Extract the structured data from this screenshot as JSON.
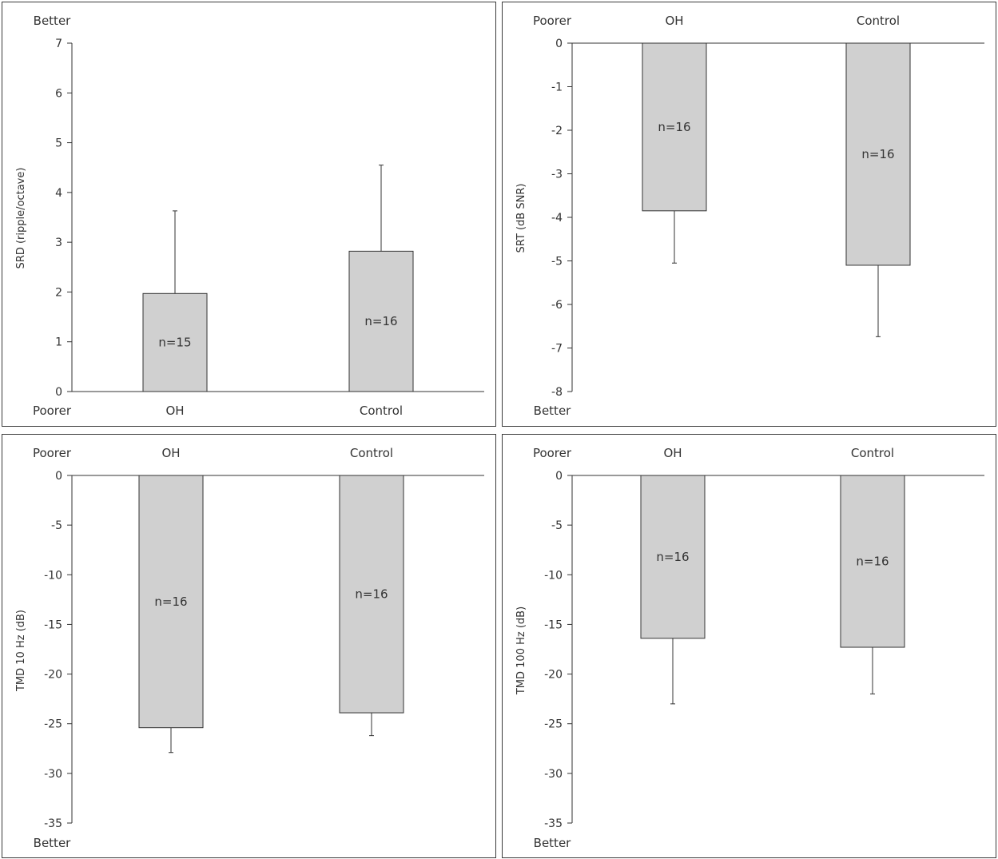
{
  "chart_data": [
    {
      "type": "bar",
      "categories": [
        "OH",
        "Control"
      ],
      "values": [
        1.97,
        2.82
      ],
      "error_bars": [
        1.66,
        1.73
      ],
      "error_direction": "up",
      "n_labels": [
        "n=15",
        "n=16"
      ],
      "ylabel": "SRD (ripple/octave)",
      "ylim": [
        0,
        7
      ],
      "yticks": [
        "0",
        "1",
        "2",
        "3",
        "4",
        "5",
        "6",
        "7"
      ],
      "category_axis": "bottom",
      "direction_top": "Better",
      "direction_bottom": "Poorer",
      "bar_color": "#d0d0d0"
    },
    {
      "type": "bar",
      "categories": [
        "OH",
        "Control"
      ],
      "values": [
        -3.85,
        -5.1
      ],
      "error_bars": [
        1.2,
        1.64
      ],
      "error_direction": "down",
      "n_labels": [
        "n=16",
        "n=16"
      ],
      "ylabel": "SRT (dB SNR)",
      "ylim": [
        -8,
        0
      ],
      "yticks": [
        "0",
        "-1",
        "-2",
        "-3",
        "-4",
        "-5",
        "-6",
        "-7",
        "-8"
      ],
      "category_axis": "top",
      "direction_top": "Poorer",
      "direction_bottom": "Better",
      "bar_color": "#d0d0d0"
    },
    {
      "type": "bar",
      "categories": [
        "OH",
        "Control"
      ],
      "values": [
        -25.4,
        -23.9
      ],
      "error_bars": [
        2.5,
        2.3
      ],
      "error_direction": "down",
      "n_labels": [
        "n=16",
        "n=16"
      ],
      "ylabel": "TMD 10 Hz (dB)",
      "ylim": [
        -35,
        0
      ],
      "yticks": [
        "0",
        "-5",
        "-10",
        "-15",
        "-20",
        "-25",
        "-30",
        "-35"
      ],
      "category_axis": "top",
      "direction_top": "Poorer",
      "direction_bottom": "Better",
      "bar_color": "#d0d0d0"
    },
    {
      "type": "bar",
      "categories": [
        "OH",
        "Control"
      ],
      "values": [
        -16.4,
        -17.3
      ],
      "error_bars": [
        6.6,
        4.7
      ],
      "error_direction": "down",
      "n_labels": [
        "n=16",
        "n=16"
      ],
      "ylabel": "TMD 100 Hz (dB)",
      "ylim": [
        -35,
        0
      ],
      "yticks": [
        "0",
        "-5",
        "-10",
        "-15",
        "-20",
        "-25",
        "-30",
        "-35"
      ],
      "category_axis": "top",
      "direction_top": "Poorer",
      "direction_bottom": "Better",
      "bar_color": "#d0d0d0"
    }
  ]
}
